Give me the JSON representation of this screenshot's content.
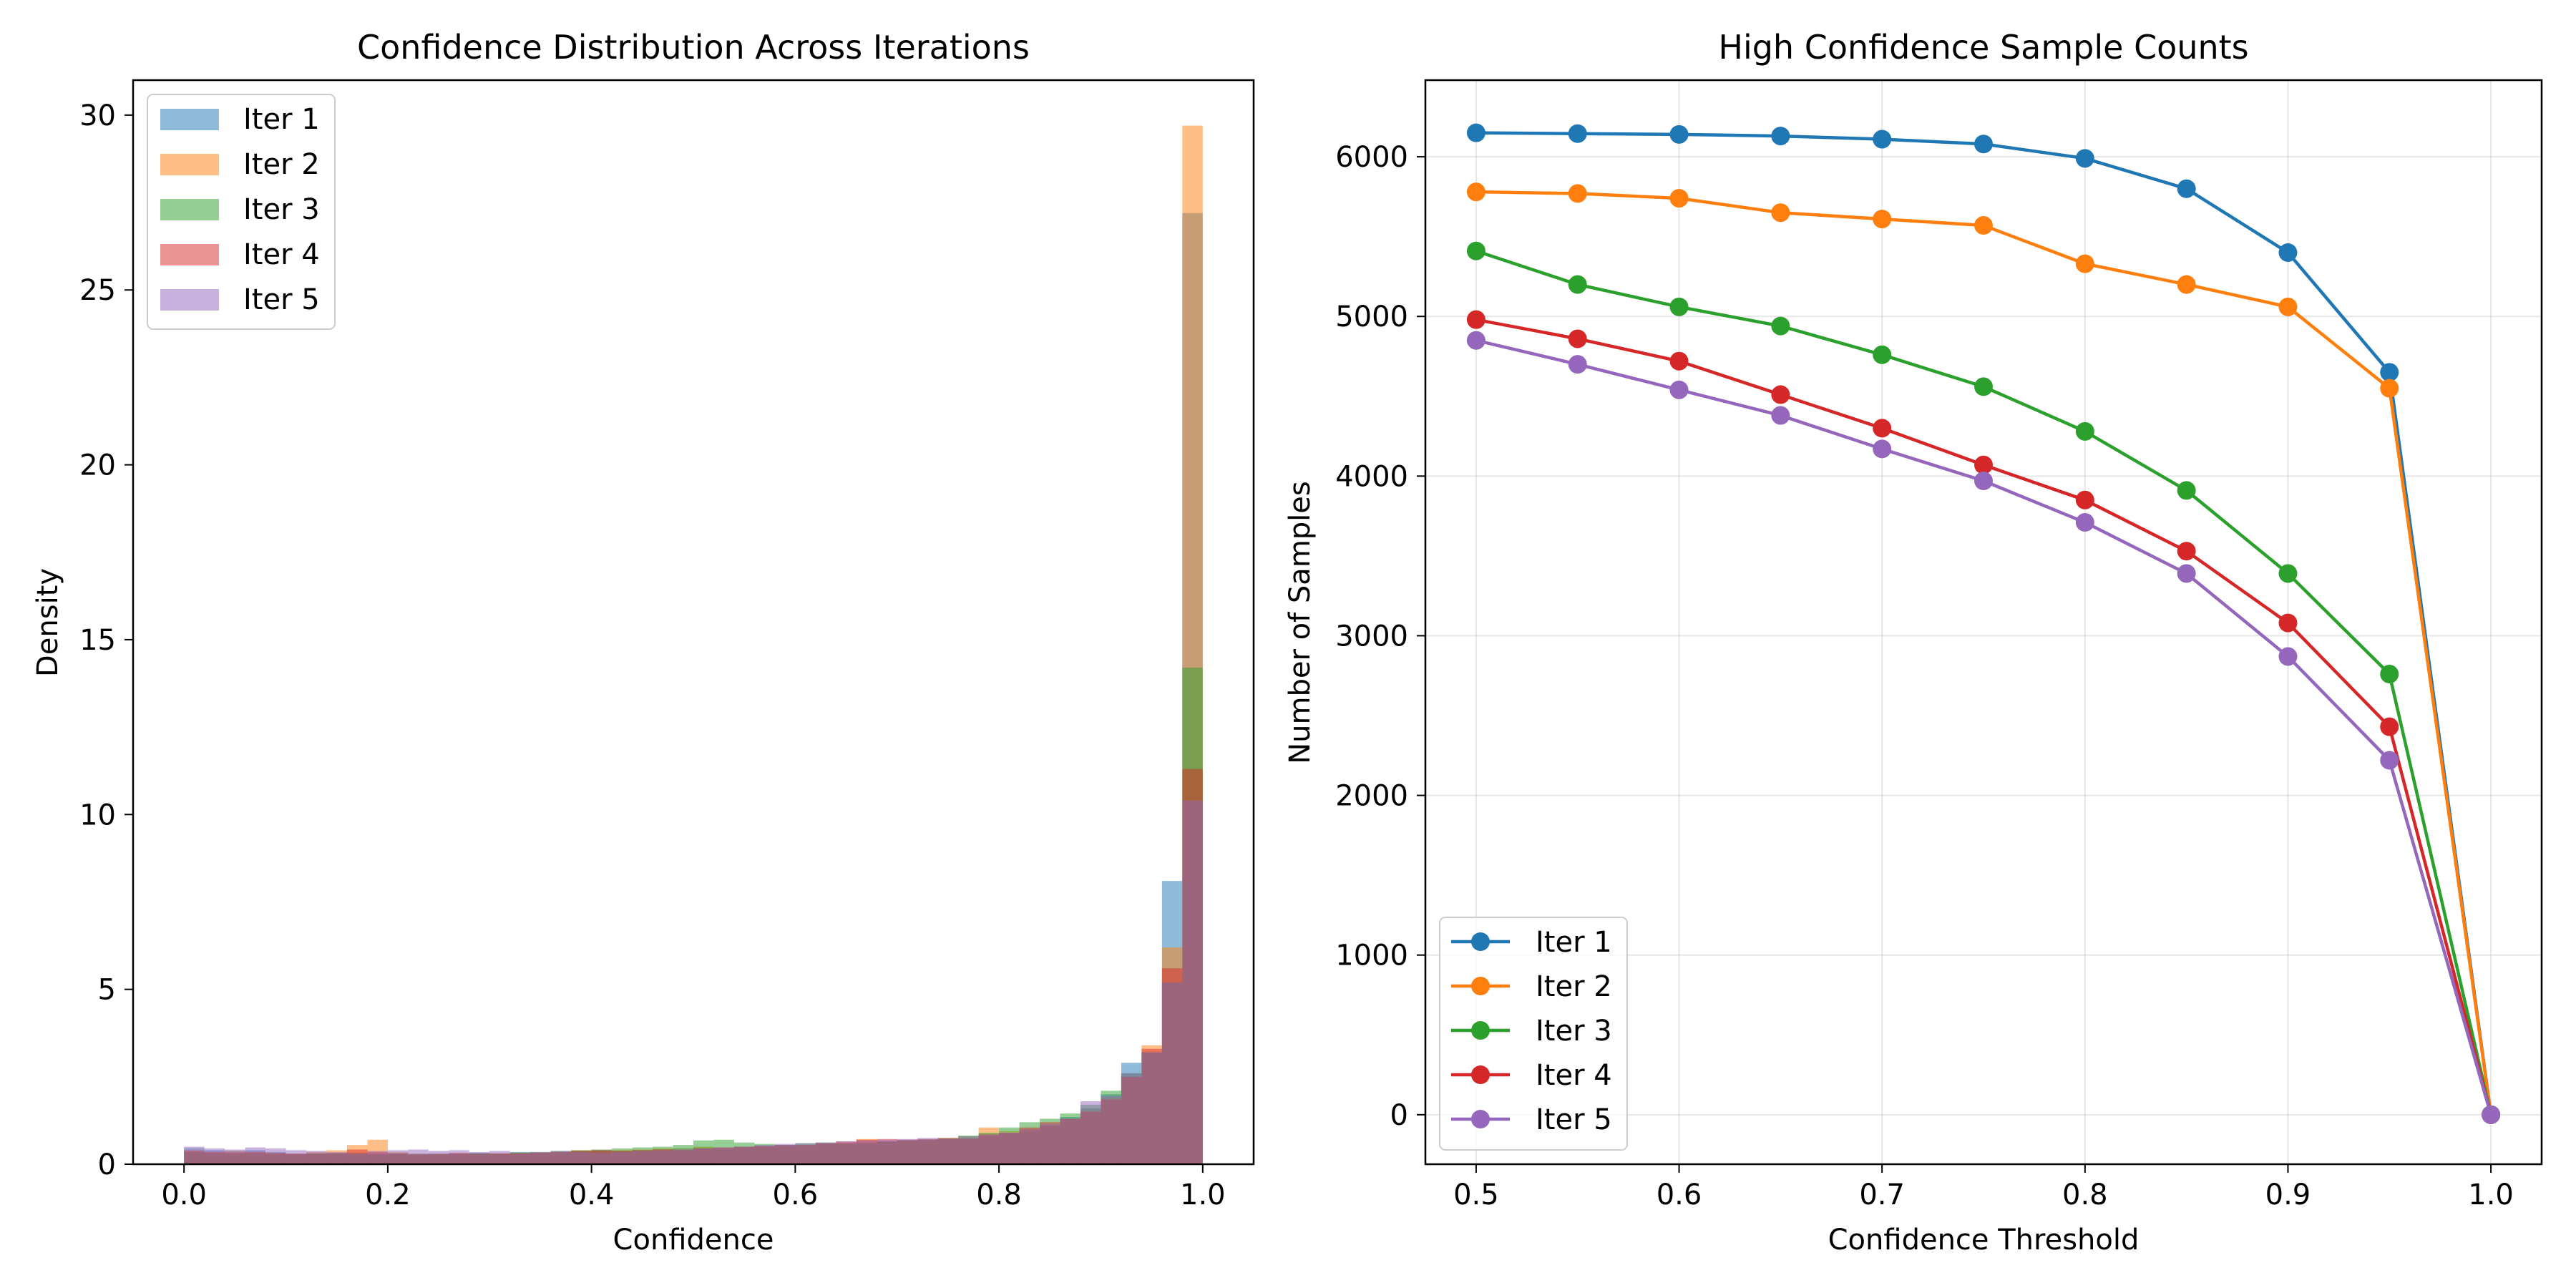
{
  "chart_data": [
    {
      "type": "histogram",
      "title": "Confidence Distribution Across Iterations",
      "xlabel": "Confidence",
      "ylabel": "Density",
      "xlim": [
        -0.05,
        1.05
      ],
      "ylim": [
        0,
        31
      ],
      "xticks": [
        0.0,
        0.2,
        0.4,
        0.6,
        0.8,
        1.0
      ],
      "xtick_labels": [
        "0.0",
        "0.2",
        "0.4",
        "0.6",
        "0.8",
        "1.0"
      ],
      "yticks": [
        0,
        5,
        10,
        15,
        20,
        25,
        30
      ],
      "ytick_labels": [
        "0",
        "5",
        "10",
        "15",
        "20",
        "25",
        "30"
      ],
      "bin_edges_range": [
        0.0,
        1.0
      ],
      "bin_count": 50,
      "grid": false,
      "legend_position": "upper-left",
      "series": [
        {
          "name": "Iter 1",
          "color": "#1f77b4",
          "values": [
            0.45,
            0.4,
            0.38,
            0.4,
            0.35,
            0.3,
            0.32,
            0.3,
            0.33,
            0.3,
            0.32,
            0.3,
            0.28,
            0.3,
            0.32,
            0.3,
            0.35,
            0.33,
            0.35,
            0.38,
            0.4,
            0.38,
            0.4,
            0.42,
            0.45,
            0.48,
            0.45,
            0.5,
            0.52,
            0.55,
            0.55,
            0.58,
            0.6,
            0.62,
            0.65,
            0.68,
            0.7,
            0.72,
            0.75,
            0.8,
            0.88,
            0.95,
            1.1,
            1.35,
            1.6,
            2.0,
            2.9,
            3.2,
            8.1,
            27.2
          ]
        },
        {
          "name": "Iter 2",
          "color": "#ff7f0e",
          "values": [
            0.4,
            0.35,
            0.38,
            0.35,
            0.32,
            0.3,
            0.35,
            0.4,
            0.55,
            0.7,
            0.35,
            0.3,
            0.28,
            0.32,
            0.3,
            0.32,
            0.3,
            0.33,
            0.35,
            0.4,
            0.38,
            0.4,
            0.42,
            0.45,
            0.45,
            0.5,
            0.48,
            0.5,
            0.52,
            0.5,
            0.55,
            0.6,
            0.62,
            0.72,
            0.65,
            0.68,
            0.7,
            0.72,
            0.78,
            1.05,
            0.95,
            1.0,
            1.1,
            1.3,
            1.55,
            1.9,
            2.5,
            3.4,
            6.2,
            29.7
          ]
        },
        {
          "name": "Iter 3",
          "color": "#2ca02c",
          "values": [
            0.35,
            0.32,
            0.3,
            0.32,
            0.3,
            0.28,
            0.3,
            0.32,
            0.3,
            0.28,
            0.3,
            0.28,
            0.3,
            0.3,
            0.32,
            0.3,
            0.33,
            0.35,
            0.38,
            0.4,
            0.42,
            0.45,
            0.48,
            0.5,
            0.55,
            0.68,
            0.7,
            0.62,
            0.58,
            0.55,
            0.6,
            0.62,
            0.58,
            0.6,
            0.65,
            0.68,
            0.7,
            0.75,
            0.82,
            0.9,
            1.05,
            1.2,
            1.3,
            1.45,
            1.7,
            2.1,
            2.6,
            3.2,
            5.2,
            14.2
          ]
        },
        {
          "name": "Iter 4",
          "color": "#d62728",
          "values": [
            0.38,
            0.35,
            0.33,
            0.35,
            0.32,
            0.3,
            0.3,
            0.32,
            0.42,
            0.35,
            0.3,
            0.28,
            0.3,
            0.32,
            0.3,
            0.3,
            0.32,
            0.33,
            0.35,
            0.38,
            0.4,
            0.38,
            0.4,
            0.42,
            0.4,
            0.45,
            0.48,
            0.5,
            0.52,
            0.55,
            0.55,
            0.6,
            0.65,
            0.7,
            0.72,
            0.7,
            0.72,
            0.75,
            0.72,
            0.85,
            0.9,
            1.05,
            1.2,
            1.3,
            1.5,
            1.85,
            2.5,
            3.3,
            5.6,
            11.3
          ]
        },
        {
          "name": "Iter 5",
          "color": "#9467bd",
          "values": [
            0.5,
            0.45,
            0.42,
            0.48,
            0.45,
            0.4,
            0.38,
            0.35,
            0.3,
            0.38,
            0.4,
            0.42,
            0.38,
            0.4,
            0.35,
            0.38,
            0.3,
            0.35,
            0.38,
            0.35,
            0.33,
            0.35,
            0.38,
            0.4,
            0.42,
            0.45,
            0.48,
            0.5,
            0.55,
            0.58,
            0.6,
            0.62,
            0.65,
            0.68,
            0.7,
            0.72,
            0.75,
            0.72,
            0.8,
            0.85,
            0.9,
            1.0,
            1.15,
            1.3,
            1.8,
            1.95,
            2.6,
            3.2,
            5.2,
            10.4
          ]
        }
      ]
    },
    {
      "type": "line",
      "title": "High Confidence Sample Counts",
      "xlabel": "Confidence Threshold",
      "ylabel": "Number of Samples",
      "xlim": [
        0.475,
        1.025
      ],
      "ylim": [
        -310,
        6480
      ],
      "xticks": [
        0.5,
        0.6,
        0.7,
        0.8,
        0.9,
        1.0
      ],
      "xtick_labels": [
        "0.5",
        "0.6",
        "0.7",
        "0.8",
        "0.9",
        "1.0"
      ],
      "yticks": [
        0,
        1000,
        2000,
        3000,
        4000,
        5000,
        6000
      ],
      "ytick_labels": [
        "0",
        "1000",
        "2000",
        "3000",
        "4000",
        "5000",
        "6000"
      ],
      "grid": true,
      "legend_position": "lower-left",
      "x": [
        0.5,
        0.55,
        0.6,
        0.65,
        0.7,
        0.75,
        0.8,
        0.85,
        0.9,
        0.95,
        1.0
      ],
      "series": [
        {
          "name": "Iter 1",
          "color": "#1f77b4",
          "values": [
            6150,
            6145,
            6140,
            6130,
            6110,
            6080,
            5990,
            5800,
            5400,
            4650,
            0
          ]
        },
        {
          "name": "Iter 2",
          "color": "#ff7f0e",
          "values": [
            5780,
            5770,
            5740,
            5650,
            5610,
            5570,
            5330,
            5200,
            5060,
            4550,
            0
          ]
        },
        {
          "name": "Iter 3",
          "color": "#2ca02c",
          "values": [
            5410,
            5200,
            5060,
            4940,
            4760,
            4560,
            4280,
            3910,
            3390,
            2760,
            0
          ]
        },
        {
          "name": "Iter 4",
          "color": "#d62728",
          "values": [
            4980,
            4860,
            4720,
            4510,
            4300,
            4070,
            3850,
            3530,
            3080,
            2430,
            0
          ]
        },
        {
          "name": "Iter 5",
          "color": "#9467bd",
          "values": [
            4850,
            4700,
            4540,
            4380,
            4170,
            3970,
            3710,
            3390,
            2870,
            2220,
            0
          ]
        }
      ]
    }
  ]
}
